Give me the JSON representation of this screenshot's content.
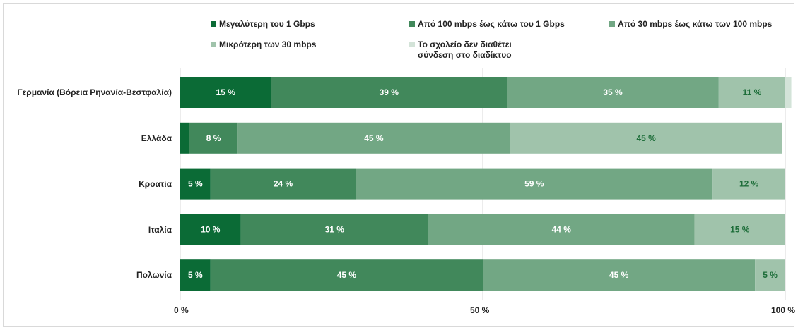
{
  "chart_data": {
    "type": "bar",
    "orientation": "horizontal",
    "stacked": true,
    "categories": [
      "Γερμανία (Βόρεια Ρηνανία-Βεστφαλία)",
      "Ελλάδα",
      "Κροατία",
      "Ιταλία",
      "Πολωνία"
    ],
    "series": [
      {
        "name": "Μεγαλύτερη του 1 Gbps",
        "color": "#0b6b36",
        "values": [
          15,
          1.5,
          5,
          10,
          5
        ],
        "labels": [
          "15 %",
          "",
          "5 %",
          "10 %",
          "5 %"
        ],
        "label_color": "#ffffff"
      },
      {
        "name": "Από 100 mbps έως κάτω του 1 Gbps",
        "color": "#41885b",
        "values": [
          39,
          8,
          24,
          31,
          45
        ],
        "labels": [
          "39 %",
          "8 %",
          "24 %",
          "31 %",
          "45 %"
        ],
        "label_color": "#ffffff"
      },
      {
        "name": "Από 30 mbps έως κάτω των 100 mbps",
        "color": "#72a784",
        "values": [
          35,
          45,
          59,
          44,
          45
        ],
        "labels": [
          "35 %",
          "45 %",
          "59 %",
          "44 %",
          "45 %"
        ],
        "label_color": "#ffffff"
      },
      {
        "name": "Μικρότερη των 30 mbps",
        "color": "#a0c3ab",
        "values": [
          11,
          45,
          12,
          15,
          5
        ],
        "labels": [
          "11 %",
          "45 %",
          "12 %",
          "15 %",
          "5 %"
        ],
        "label_color": "#1e6e3a"
      },
      {
        "name_lines": [
          "Το σχολείο δεν διαθέτει",
          "σύνδεση στο διαδίκτυο"
        ],
        "color": "#d3e3d8",
        "values": [
          1,
          0,
          0,
          0,
          0
        ],
        "labels": [
          "",
          "",
          "",
          "",
          ""
        ],
        "label_color": "#1e6e3a"
      }
    ],
    "xlim": [
      0,
      100
    ],
    "x_ticks": [
      "0 %",
      "50 %",
      "100 %"
    ],
    "grid": true,
    "legend_position": "top"
  }
}
